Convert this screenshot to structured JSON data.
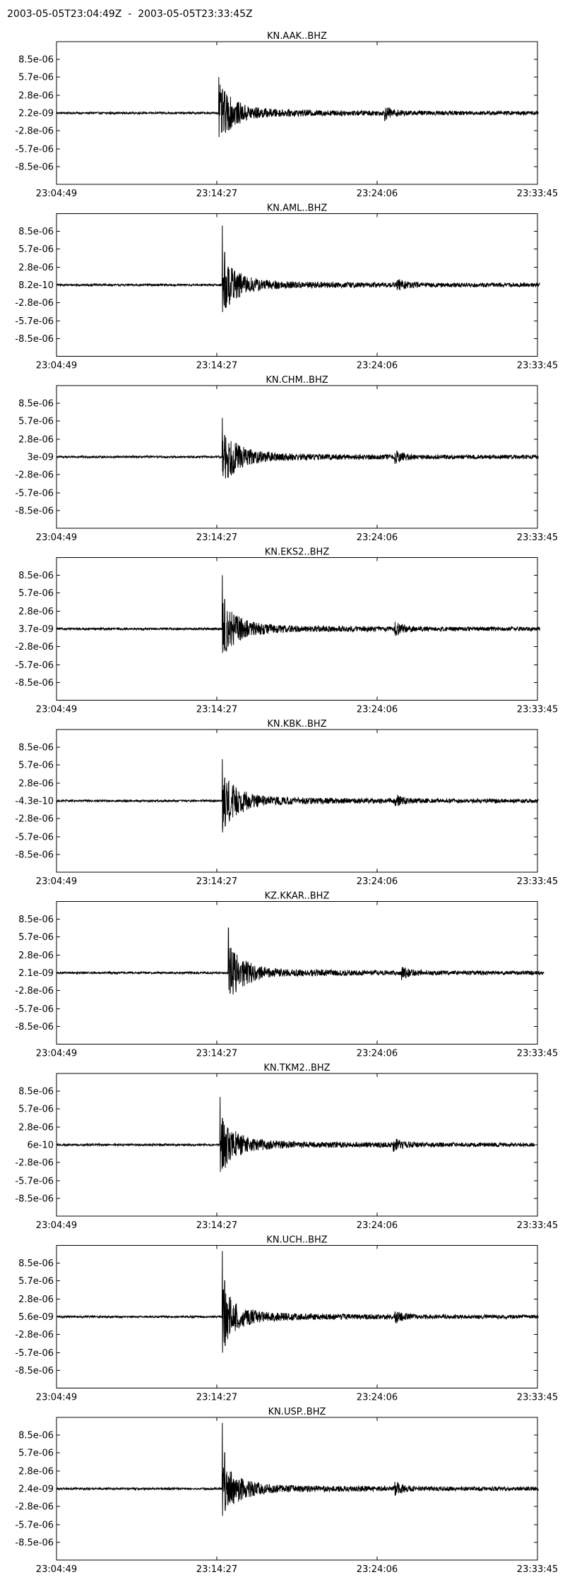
{
  "page": {
    "title": "2003-05-05T23:04:49Z  -  2003-05-05T23:33:45Z"
  },
  "chart_data": {
    "type": "line",
    "xtick_labels": [
      "23:04:49",
      "23:14:27",
      "23:24:06",
      "23:33:45"
    ],
    "ytick_values": [
      8.5e-06,
      5.7e-06,
      2.8e-06,
      -2.8e-06,
      -5.7e-06,
      -8.5e-06
    ],
    "ytick_labels": [
      "8.5e-06",
      "5.7e-06",
      "2.8e-06",
      "-2.8e-06",
      "-5.7e-06",
      "-8.5e-06"
    ],
    "ylim": [
      -1.13e-05,
      1.13e-05
    ],
    "grid": false,
    "series_color": "#000000",
    "panels": [
      {
        "title": "KN.AAK..BHZ",
        "center_label": "2.2e-09",
        "peak_pos": 5.7e-06,
        "peak_neg": -3.8e-06,
        "p_arrival_s": 585,
        "s_arrival_s": 1184,
        "trace_end_s": 1740
      },
      {
        "title": "KN.AML..BHZ",
        "center_label": "8.2e-10",
        "peak_pos": 9.4e-06,
        "peak_neg": -4.3e-06,
        "p_arrival_s": 598,
        "s_arrival_s": 1228,
        "trace_end_s": 1745
      },
      {
        "title": "KN.CHM..BHZ",
        "center_label": "3e-09",
        "peak_pos": 6.2e-06,
        "peak_neg": -2.3e-06,
        "p_arrival_s": 598,
        "s_arrival_s": 1221,
        "trace_end_s": 1740
      },
      {
        "title": "KN.EKS2..BHZ",
        "center_label": "3.7e-09",
        "peak_pos": 8.5e-06,
        "peak_neg": -3.8e-06,
        "p_arrival_s": 598,
        "s_arrival_s": 1221,
        "trace_end_s": 1745
      },
      {
        "title": "KN.KBK..BHZ",
        "center_label": "-4.3e-10",
        "peak_pos": 6.6e-06,
        "peak_neg": -5e-06,
        "p_arrival_s": 598,
        "s_arrival_s": 1221,
        "trace_end_s": 1740
      },
      {
        "title": "KZ.KKAR..BHZ",
        "center_label": "2.1e-09",
        "peak_pos": 7.1e-06,
        "peak_neg": -2.7e-06,
        "p_arrival_s": 620,
        "s_arrival_s": 1245,
        "trace_end_s": 1760
      },
      {
        "title": "KN.TKM2..BHZ",
        "center_label": "6e-10",
        "peak_pos": 7.6e-06,
        "peak_neg": -4.3e-06,
        "p_arrival_s": 590,
        "s_arrival_s": 1215,
        "trace_end_s": 1725
      },
      {
        "title": "KN.UCH..BHZ",
        "center_label": "5.6e-09",
        "peak_pos": 1.04e-05,
        "peak_neg": -5.7e-06,
        "p_arrival_s": 598,
        "s_arrival_s": 1221,
        "trace_end_s": 1740
      },
      {
        "title": "KN.USP..BHZ",
        "center_label": "2.4e-09",
        "peak_pos": 1.04e-05,
        "peak_neg": -4.3e-06,
        "p_arrival_s": 598,
        "s_arrival_s": 1221,
        "trace_end_s": 1740
      }
    ]
  }
}
